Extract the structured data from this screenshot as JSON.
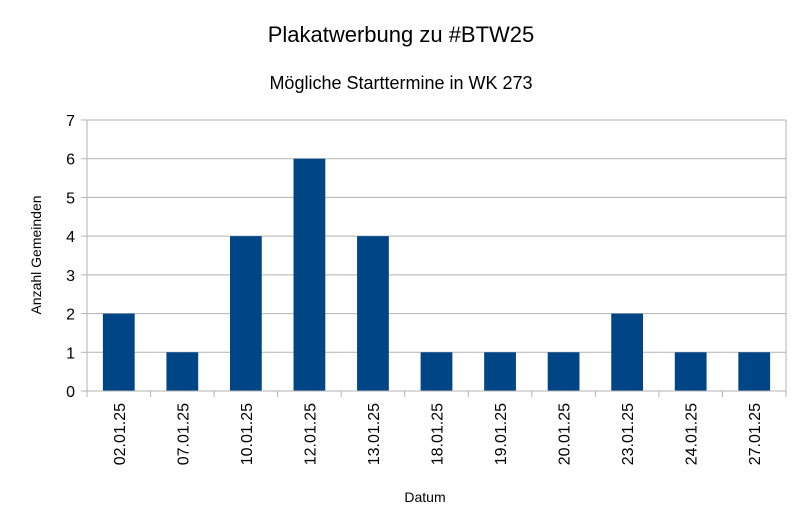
{
  "chart_data": {
    "type": "bar",
    "title": "Plakatwerbung zu #BTW25",
    "subtitle": "Mögliche Starttermine in WK 273",
    "xlabel": "Datum",
    "ylabel": "Anzahl Gemeinden",
    "categories": [
      "02.01.25",
      "07.01.25",
      "10.01.25",
      "12.01.25",
      "13.01.25",
      "18.01.25",
      "19.01.25",
      "20.01.25",
      "23.01.25",
      "24.01.25",
      "27.01.25"
    ],
    "values": [
      2,
      1,
      4,
      6,
      4,
      1,
      1,
      1,
      2,
      1,
      1
    ],
    "ylim": [
      0,
      7
    ],
    "yticks": [
      0,
      1,
      2,
      3,
      4,
      5,
      6,
      7
    ],
    "grid": true,
    "legend": "none",
    "bar_color": "#004586",
    "grid_color": "#b3b3b3"
  }
}
